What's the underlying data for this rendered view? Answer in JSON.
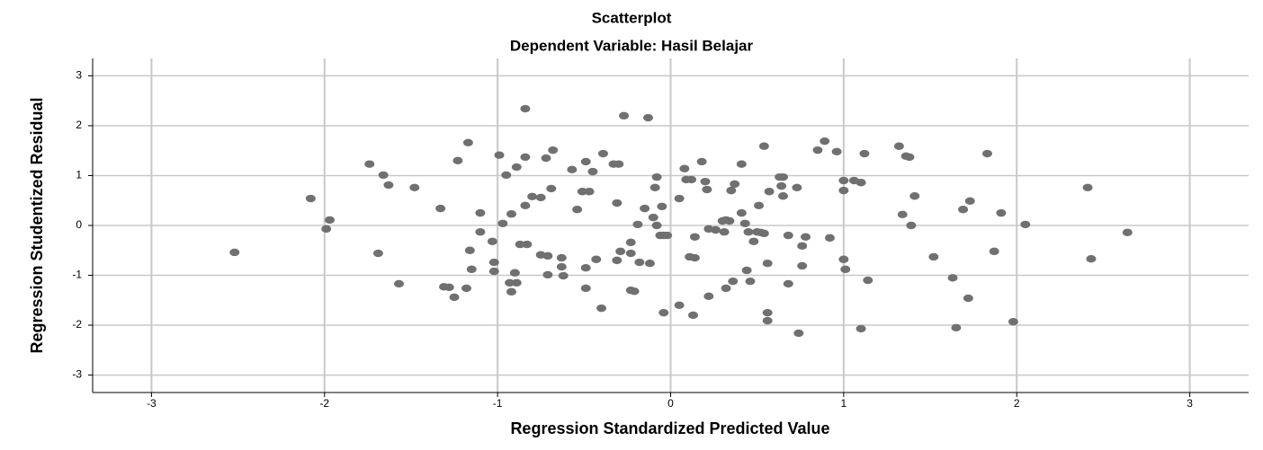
{
  "chart_data": {
    "type": "scatter",
    "title": "Scatterplot",
    "subtitle": "Dependent Variable: Hasil Belajar",
    "x_label": "Regression Standardized Predicted Value",
    "y_label": "Regression Studentized Residual",
    "color": "#707070",
    "grid": true,
    "xlim": [
      -3.34,
      3.34
    ],
    "ylim": [
      -3.35,
      3.35
    ],
    "xticks": [
      -3,
      -2,
      -1,
      0,
      1,
      2,
      3
    ],
    "yticks": [
      -3,
      -2,
      -1,
      0,
      1,
      2,
      3
    ],
    "x": [
      -2.52,
      -2.08,
      -1.97,
      -1.99,
      -1.74,
      -1.66,
      -1.63,
      -1.69,
      -1.57,
      -1.48,
      -1.33,
      -1.31,
      -1.28,
      -1.25,
      -1.23,
      -1.18,
      -1.17,
      -1.16,
      -1.15,
      -1.1,
      -1.1,
      -1.03,
      -1.02,
      -1.02,
      -0.99,
      -0.97,
      -0.95,
      -0.92,
      -0.93,
      -0.92,
      -0.9,
      -0.89,
      -0.89,
      -0.87,
      -0.84,
      -0.84,
      -0.83,
      -0.84,
      -0.8,
      -0.75,
      -0.75,
      -0.72,
      -0.71,
      -0.71,
      -0.69,
      -0.68,
      -0.63,
      -0.63,
      -0.62,
      -0.57,
      -0.54,
      -0.51,
      -0.49,
      -0.49,
      -0.49,
      -0.47,
      -0.45,
      -0.43,
      -0.4,
      -0.39,
      -0.33,
      -0.3,
      -0.31,
      -0.31,
      -0.29,
      -0.27,
      -0.23,
      -0.23,
      -0.23,
      -0.21,
      -0.19,
      -0.18,
      -0.15,
      -0.13,
      -0.12,
      -0.1,
      -0.09,
      -0.08,
      -0.08,
      -0.06,
      -0.05,
      -0.04,
      -0.04,
      -0.02,
      0.05,
      0.05,
      0.08,
      0.09,
      0.11,
      0.12,
      0.13,
      0.14,
      0.14,
      0.18,
      0.2,
      0.21,
      0.22,
      0.22,
      0.26,
      0.3,
      0.31,
      0.32,
      0.32,
      0.34,
      0.36,
      0.35,
      0.37,
      0.41,
      0.41,
      0.43,
      0.44,
      0.45,
      0.46,
      0.48,
      0.5,
      0.51,
      0.52,
      0.54,
      0.54,
      0.56,
      0.56,
      0.56,
      0.57,
      0.63,
      0.65,
      0.64,
      0.65,
      0.68,
      0.68,
      0.73,
      0.74,
      0.76,
      0.76,
      0.78,
      0.85,
      0.89,
      0.92,
      0.96,
      1.0,
      1.0,
      1.0,
      1.01,
      1.06,
      1.1,
      1.1,
      1.12,
      1.14,
      1.32,
      1.34,
      1.36,
      1.38,
      1.39,
      1.41,
      1.52,
      1.63,
      1.65,
      1.69,
      1.73,
      1.72,
      1.83,
      1.87,
      1.91,
      1.98,
      2.05,
      2.41,
      2.43,
      2.64
    ],
    "values": [
      -0.54,
      0.54,
      0.11,
      -0.07,
      1.23,
      1.01,
      0.81,
      -0.56,
      -1.17,
      0.76,
      0.34,
      -1.23,
      -1.24,
      -1.44,
      1.3,
      -1.26,
      1.66,
      -0.5,
      -0.88,
      0.25,
      -0.13,
      -0.32,
      -0.74,
      -0.92,
      1.41,
      0.04,
      1.01,
      0.23,
      -1.15,
      -1.33,
      -0.95,
      -1.15,
      1.17,
      -0.38,
      1.37,
      2.34,
      -0.38,
      0.4,
      0.58,
      0.56,
      -0.59,
      1.35,
      -0.99,
      -0.61,
      0.74,
      1.51,
      -0.65,
      -0.83,
      -1.01,
      1.12,
      0.32,
      0.68,
      1.28,
      -0.85,
      -1.26,
      0.68,
      1.08,
      -0.68,
      -1.66,
      1.44,
      1.23,
      1.23,
      0.45,
      -0.7,
      -0.52,
      2.2,
      -0.34,
      -0.56,
      -1.3,
      -1.32,
      0.02,
      -0.74,
      0.34,
      2.16,
      -0.76,
      0.16,
      0.76,
      0.97,
      0.0,
      -0.2,
      0.38,
      -1.75,
      -0.2,
      -0.2,
      0.54,
      -1.6,
      1.14,
      0.92,
      -0.63,
      0.92,
      -1.8,
      -0.23,
      -0.65,
      1.28,
      0.88,
      0.72,
      -1.42,
      -0.07,
      -0.09,
      0.09,
      -0.13,
      0.11,
      -1.26,
      0.09,
      -1.12,
      0.7,
      0.83,
      1.23,
      0.25,
      0.04,
      -0.9,
      -0.13,
      -1.12,
      -0.32,
      -0.13,
      0.4,
      -0.14,
      -0.16,
      1.59,
      -1.75,
      -1.91,
      -0.76,
      0.68,
      0.97,
      0.97,
      0.79,
      0.59,
      -1.17,
      -0.2,
      0.76,
      -2.16,
      -0.41,
      -0.81,
      -0.23,
      1.51,
      1.69,
      -0.25,
      1.48,
      0.7,
      0.9,
      -0.68,
      -0.88,
      0.9,
      0.86,
      -2.07,
      1.44,
      -1.1,
      1.59,
      0.22,
      1.39,
      1.37,
      0.0,
      0.59,
      -0.63,
      -1.05,
      -2.05,
      0.32,
      0.49,
      -1.46,
      1.44,
      -0.52,
      0.25,
      -1.93,
      0.02,
      0.76,
      -0.67,
      -0.14
    ]
  }
}
